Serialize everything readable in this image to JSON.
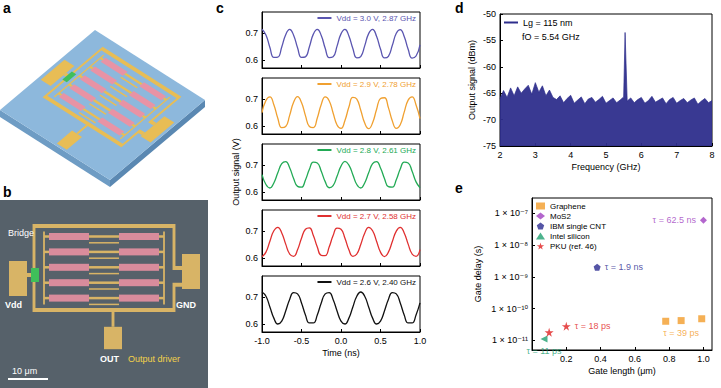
{
  "panel_labels": [
    "a",
    "b",
    "c",
    "d",
    "e"
  ],
  "micrograph": {
    "bridge": "Bridge",
    "vdd": "Vdd",
    "gnd": "GND",
    "out": "OUT",
    "output_driver": "Output driver",
    "scale_bar": "10 μm"
  },
  "chart_data": [
    {
      "type": "line",
      "xlabel": "Time (ns)",
      "ylabel": "Output signal (V)",
      "x": [
        -1,
        -0.95,
        -0.9,
        -0.85,
        -0.8,
        -0.75,
        -0.7,
        -0.65,
        -0.6,
        -0.55,
        -0.5,
        -0.45,
        -0.4,
        -0.35,
        -0.3,
        -0.25,
        -0.2,
        -0.15,
        -0.1,
        -0.05,
        0,
        0.05,
        0.1,
        0.15,
        0.2,
        0.25,
        0.3,
        0.35,
        0.4,
        0.45,
        0.5,
        0.55,
        0.6,
        0.65,
        0.7,
        0.75,
        0.8,
        0.85,
        0.9,
        0.95,
        1
      ],
      "xlim": [
        -1,
        1
      ],
      "xticks": [
        {
          "value": -1,
          "label": "-1.0"
        },
        {
          "value": -0.5,
          "label": "-0.5"
        },
        {
          "value": 0,
          "label": "0.0"
        },
        {
          "value": 0.5,
          "label": "0.5"
        },
        {
          "value": 1,
          "label": "1.0"
        }
      ],
      "ylim": [
        0.57,
        0.78
      ],
      "yticks": [
        0.6,
        0.7
      ],
      "legend": "upper right",
      "series": [
        {
          "name": "Vdd = 3.0 V, 2.87 GHz",
          "color": "#5a55b0",
          "values": [
            0.715,
            0.694,
            0.647,
            0.61,
            0.611,
            0.649,
            0.695,
            0.715,
            0.693,
            0.646,
            0.61,
            0.612,
            0.65,
            0.697,
            0.715,
            0.692,
            0.644,
            0.609,
            0.612,
            0.652,
            0.698,
            0.715,
            0.69,
            0.643,
            0.608,
            0.613,
            0.653,
            0.699,
            0.715,
            0.689,
            0.641,
            0.608,
            0.614,
            0.655,
            0.7,
            0.714,
            0.688,
            0.64,
            0.607,
            0.615,
            0.657
          ]
        },
        {
          "name": "Vdd = 2.9 V, 2.78 GHz",
          "color": "#f0a030",
          "values": [
            0.65,
            0.696,
            0.709,
            0.68,
            0.629,
            0.594,
            0.598,
            0.64,
            0.689,
            0.71,
            0.688,
            0.639,
            0.598,
            0.594,
            0.63,
            0.681,
            0.709,
            0.695,
            0.649,
            0.604,
            0.591,
            0.621,
            0.671,
            0.707,
            0.701,
            0.659,
            0.611,
            0.59,
            0.612,
            0.662,
            0.703,
            0.706,
            0.669,
            0.619,
            0.591,
            0.605,
            0.652,
            0.697,
            0.709,
            0.679,
            0.628
          ]
        },
        {
          "name": "Vdd = 2.8 V, 2.61 GHz",
          "color": "#22aa55",
          "values": [
            0.665,
            0.628,
            0.615,
            0.634,
            0.672,
            0.706,
            0.714,
            0.691,
            0.651,
            0.621,
            0.618,
            0.645,
            0.685,
            0.712,
            0.709,
            0.678,
            0.639,
            0.616,
            0.624,
            0.659,
            0.697,
            0.715,
            0.701,
            0.665,
            0.628,
            0.615,
            0.634,
            0.672,
            0.706,
            0.714,
            0.69,
            0.651,
            0.62,
            0.618,
            0.646,
            0.686,
            0.712,
            0.709,
            0.678,
            0.638,
            0.616
          ]
        },
        {
          "name": "Vdd = 2.7 V, 2.58 GHz",
          "color": "#e03030",
          "values": [
            0.605,
            0.622,
            0.663,
            0.702,
            0.715,
            0.694,
            0.652,
            0.615,
            0.606,
            0.631,
            0.674,
            0.708,
            0.713,
            0.684,
            0.641,
            0.61,
            0.609,
            0.641,
            0.684,
            0.712,
            0.708,
            0.674,
            0.631,
            0.606,
            0.615,
            0.651,
            0.693,
            0.715,
            0.702,
            0.663,
            0.622,
            0.605,
            0.622,
            0.662,
            0.701,
            0.715,
            0.694,
            0.652,
            0.615,
            0.606,
            0.631
          ]
        },
        {
          "name": "Vdd = 2.6 V, 2.40 GHz",
          "color": "#111111",
          "values": [
            0.72,
            0.704,
            0.664,
            0.622,
            0.6,
            0.611,
            0.649,
            0.692,
            0.718,
            0.713,
            0.679,
            0.634,
            0.604,
            0.604,
            0.634,
            0.679,
            0.713,
            0.718,
            0.692,
            0.649,
            0.611,
            0.6,
            0.622,
            0.664,
            0.704,
            0.72,
            0.704,
            0.664,
            0.622,
            0.6,
            0.611,
            0.649,
            0.692,
            0.718,
            0.713,
            0.679,
            0.634,
            0.604,
            0.604,
            0.634,
            0.679
          ]
        }
      ]
    },
    {
      "type": "line",
      "xlabel": "Frequency (GHz)",
      "ylabel": "Output signal (dBm)",
      "annotation": "fO = 5.54 GHz",
      "x": [
        2,
        2.1,
        2.2,
        2.3,
        2.4,
        2.5,
        2.6,
        2.7,
        2.8,
        2.9,
        3,
        3.1,
        3.2,
        3.3,
        3.4,
        3.5,
        3.6,
        3.7,
        3.8,
        3.9,
        4,
        4.1,
        4.2,
        4.3,
        4.4,
        4.5,
        4.6,
        4.7,
        4.8,
        4.9,
        5,
        5.1,
        5.2,
        5.3,
        5.4,
        5.5,
        5.54,
        5.6,
        5.7,
        5.8,
        5.9,
        6,
        6.1,
        6.2,
        6.3,
        6.4,
        6.5,
        6.6,
        6.7,
        6.8,
        6.9,
        7,
        7.1,
        7.2,
        7.3,
        7.4,
        7.5,
        7.6,
        7.7,
        7.8,
        7.9,
        8
      ],
      "xlim": [
        2,
        8
      ],
      "xticks": [
        2,
        3,
        4,
        5,
        6,
        7,
        8
      ],
      "ylim": [
        -75,
        -50
      ],
      "yticks": [
        -75,
        -70,
        -65,
        -60,
        -55,
        -50
      ],
      "legend": "upper left",
      "series": [
        {
          "name": "Lg = 115 nm",
          "color": "#2e2e8c",
          "values": [
            -66,
            -64.5,
            -65.8,
            -64,
            -65.5,
            -63.8,
            -65,
            -64.2,
            -63.5,
            -65.2,
            -63,
            -64.8,
            -63.6,
            -65.5,
            -64.4,
            -65.8,
            -66.2,
            -65.5,
            -66.8,
            -66,
            -65.4,
            -66.9,
            -66.3,
            -65.7,
            -67,
            -66.1,
            -65.8,
            -66.7,
            -66.2,
            -65.6,
            -66.9,
            -66.4,
            -65.9,
            -66.8,
            -66.3,
            -65.7,
            -53.5,
            -66.5,
            -65.9,
            -66.8,
            -66.2,
            -65.8,
            -66.9,
            -66.4,
            -65.6,
            -66.7,
            -66.3,
            -65.9,
            -67,
            -66.2,
            -65.8,
            -66.9,
            -66.4,
            -66,
            -66.8,
            -66.3,
            -65.9,
            -67.1,
            -66.5,
            -66,
            -66.8,
            -66.4
          ]
        }
      ]
    },
    {
      "type": "scatter",
      "xlabel": "Gate length (μm)",
      "ylabel": "Gate delay (s)",
      "log": "y",
      "xlim": [
        0,
        1.05
      ],
      "xticks": [
        0.2,
        0.4,
        0.6,
        0.8,
        {
          "value": 1,
          "label": "1.0"
        }
      ],
      "ylim": [
        5e-12,
        3e-07
      ],
      "yticks": [
        {
          "value": 1e-11,
          "label": "1 × 10⁻¹¹"
        },
        {
          "value": 1e-10,
          "label": "1 × 10⁻¹⁰"
        },
        {
          "value": 1e-09,
          "label": "1 × 10⁻⁹"
        },
        {
          "value": 1e-08,
          "label": "1 × 10⁻⁸"
        },
        {
          "value": 1e-07,
          "label": "1 × 10⁻⁷"
        }
      ],
      "legend": "upper left",
      "series": [
        {
          "name": "Graphene",
          "color": "#f39c2a",
          "marker": "square",
          "annotation": "τ = 39 ps",
          "x": [
            0.78,
            0.87,
            0.99
          ],
          "values": [
            4e-11,
            4.2e-11,
            4.8e-11
          ]
        },
        {
          "name": "MoS2",
          "color": "#a040c0",
          "marker": "diamond",
          "annotation": "τ = 62.5 ns",
          "x": [
            1
          ],
          "values": [
            6e-08
          ]
        },
        {
          "name": "IBM single CNT",
          "color": "#2a2a90",
          "marker": "pentagon",
          "annotation": "τ = 1.9 ns",
          "x": [
            0.38
          ],
          "values": [
            2e-09
          ]
        },
        {
          "name": "Intel silicon",
          "color": "#20a070",
          "marker": "triangle",
          "annotation": "τ = 11 ps",
          "x": [
            0.07
          ],
          "values": [
            1.1e-11
          ]
        },
        {
          "name": "PKU (ref. 46)",
          "color": "#e02020",
          "marker": "star",
          "annotation": "τ = 18 ps",
          "x": [
            0.1,
            0.2
          ],
          "values": [
            1.8e-11,
            2.8e-11
          ]
        }
      ]
    }
  ]
}
